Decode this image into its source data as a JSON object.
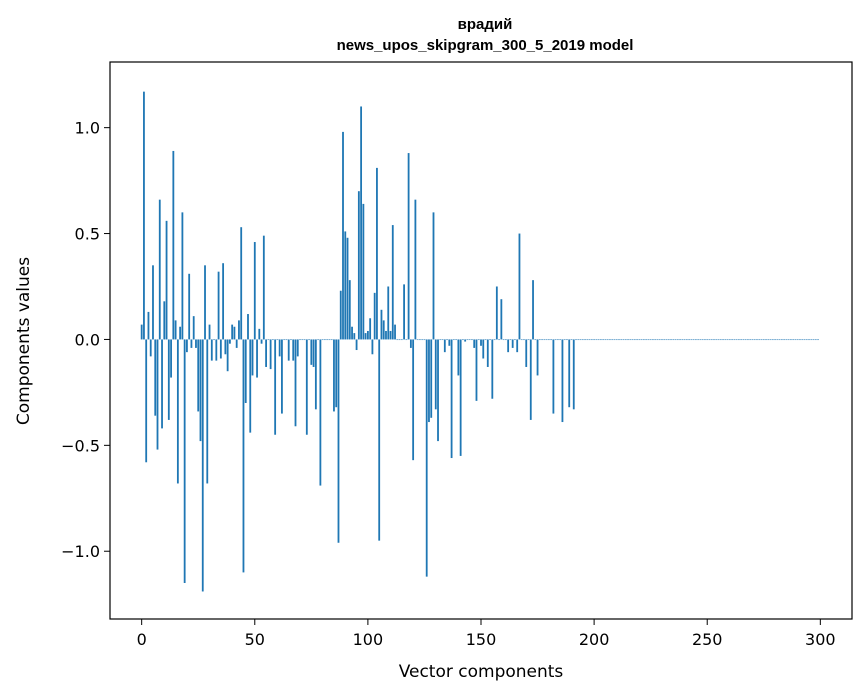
{
  "chart_data": {
    "type": "bar",
    "title_line1": "врадий",
    "title_line2": "news_upos_skipgram_300_5_2019 model",
    "xlabel": "Vector components",
    "ylabel": "Components values",
    "xlim": [
      -14,
      314
    ],
    "ylim": [
      -1.32,
      1.31
    ],
    "x_ticks": [
      0,
      50,
      100,
      150,
      200,
      250,
      300
    ],
    "x_tick_labels": [
      "0",
      "50",
      "100",
      "150",
      "200",
      "250",
      "300"
    ],
    "y_ticks": [
      -1.0,
      -0.5,
      0.0,
      0.5,
      1.0
    ],
    "y_tick_labels": [
      "−1.0",
      "−0.5",
      "0.0",
      "0.5",
      "1.0"
    ],
    "bar_color": "#1f77b4",
    "grid": false,
    "legend": "none",
    "values": [
      0.07,
      1.17,
      -0.58,
      0.13,
      -0.08,
      0.35,
      -0.36,
      -0.52,
      0.66,
      -0.42,
      0.18,
      0.56,
      -0.38,
      -0.18,
      0.89,
      0.09,
      -0.68,
      0.06,
      0.6,
      -1.15,
      -0.06,
      0.31,
      -0.04,
      0.11,
      -0.04,
      -0.34,
      -0.48,
      -1.19,
      0.35,
      -0.68,
      0.07,
      -0.1,
      0.0,
      -0.1,
      0.32,
      -0.09,
      0.36,
      -0.07,
      -0.15,
      -0.02,
      0.07,
      0.06,
      -0.04,
      0.09,
      0.53,
      -1.1,
      -0.3,
      0.12,
      -0.44,
      -0.17,
      0.46,
      -0.18,
      0.05,
      -0.02,
      0.49,
      -0.13,
      0.0,
      -0.14,
      0.0,
      -0.45,
      0.0,
      -0.08,
      -0.35,
      0.0,
      0.0,
      -0.1,
      0.0,
      -0.1,
      -0.41,
      -0.08,
      0.0,
      0.0,
      0.0,
      -0.45,
      0.0,
      -0.12,
      -0.13,
      -0.33,
      0.0,
      -0.69,
      0.0,
      0.0,
      0.0,
      0.0,
      0.0,
      -0.34,
      -0.32,
      -0.96,
      0.23,
      0.98,
      0.51,
      0.48,
      0.28,
      0.06,
      0.03,
      -0.05,
      0.7,
      1.1,
      0.64,
      0.03,
      0.04,
      0.1,
      -0.07,
      0.22,
      0.81,
      -0.95,
      0.14,
      0.09,
      0.04,
      0.25,
      0.04,
      0.54,
      0.07,
      0.0,
      0.0,
      0.0,
      0.26,
      0.0,
      0.88,
      -0.04,
      -0.57,
      0.66,
      0.0,
      0.0,
      0.0,
      0.0,
      -1.12,
      -0.39,
      -0.37,
      0.6,
      -0.33,
      -0.48,
      0.0,
      0.0,
      -0.06,
      0.0,
      -0.03,
      -0.56,
      0.0,
      0.0,
      -0.17,
      -0.55,
      0.0,
      -0.01,
      0.0,
      0.0,
      0.0,
      -0.04,
      -0.29,
      0.0,
      -0.03,
      -0.09,
      0.0,
      -0.13,
      0.0,
      -0.28,
      0.0,
      0.25,
      0.0,
      0.19,
      0.0,
      0.0,
      -0.06,
      0.0,
      -0.04,
      0.0,
      -0.06,
      0.5,
      0.0,
      0.0,
      -0.13,
      0.0,
      -0.38,
      0.28,
      0.0,
      -0.17,
      0.0,
      0.0,
      0.0,
      0.0,
      0.0,
      0.0,
      -0.35,
      0.0,
      0.0,
      0.0,
      -0.39,
      0.0,
      0.0,
      -0.32,
      0.0,
      -0.33,
      0.0,
      0.0,
      0.0,
      0.0,
      0.0,
      0.0,
      0.0,
      0.0,
      0.0,
      0.0,
      0.0,
      0.0,
      0.0,
      0.0,
      0.0,
      0.0,
      0.0,
      0.0,
      0.0,
      0.0,
      0.0,
      0.0,
      0.0,
      0.0,
      0.0,
      0.0,
      0.0,
      0.0,
      0.0,
      0.0,
      0.0,
      0.0,
      0.0,
      0.0,
      0.0,
      0.0,
      0.0,
      0.0,
      0.0,
      0.0,
      0.0,
      0.0,
      0.0,
      0.0,
      0.0,
      0.0,
      0.0,
      0.0,
      0.0,
      0.0,
      0.0,
      0.0,
      0.0,
      0.0,
      0.0,
      0.0,
      0.0,
      0.0,
      0.0,
      0.0,
      0.0,
      0.0,
      0.0,
      0.0,
      0.0,
      0.0,
      0.0,
      0.0,
      0.0,
      0.0,
      0.0,
      0.0,
      0.0,
      0.0,
      0.0,
      0.0,
      0.0,
      0.0,
      0.0,
      0.0,
      0.0,
      0.0,
      0.0,
      0.0,
      0.0,
      0.0,
      0.0,
      0.0,
      0.0,
      0.0,
      0.0,
      0.0,
      0.0,
      0.0,
      0.0,
      0.0,
      0.0,
      0.0,
      0.0,
      0.0,
      0.0,
      0.0,
      0.0,
      0.0,
      0.0,
      0.0,
      0.0,
      0.0
    ]
  }
}
